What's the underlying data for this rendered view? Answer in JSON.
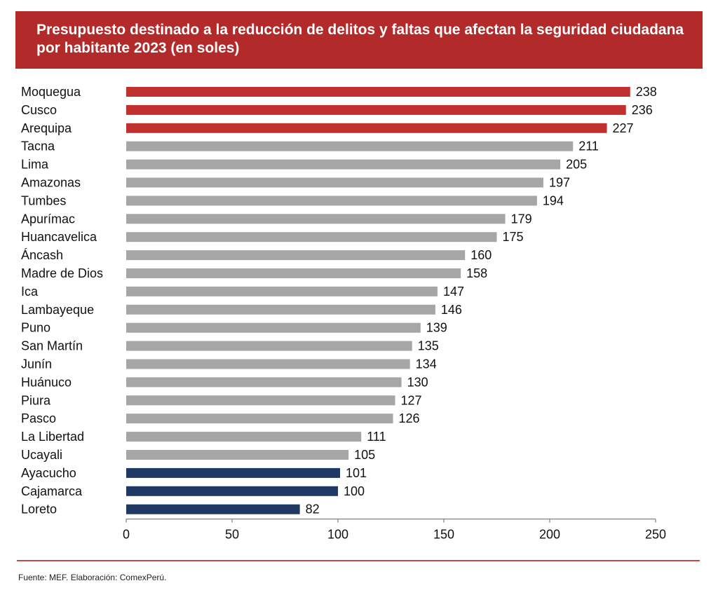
{
  "title": "Presupuesto destinado a la reducción de delitos y faltas que afectan la seguridad ciudadana por habitante 2023 (en soles)",
  "source": "Fuente: MEF. Elaboración: ComexPerú.",
  "colors": {
    "banner": "#b22a2a",
    "top": "#c0302e",
    "middle": "#a6a6a6",
    "bottom": "#1f3864",
    "rule": "#c9464a"
  },
  "chart_data": {
    "type": "bar",
    "orientation": "horizontal",
    "title": "Presupuesto destinado a la reducción de delitos y faltas que afectan la seguridad ciudadana por habitante 2023 (en soles)",
    "categories": [
      "Moquegua",
      "Cusco",
      "Arequipa",
      "Tacna",
      "Lima",
      "Amazonas",
      "Tumbes",
      "Apurímac",
      "Huancavelica",
      "Áncash",
      "Madre de Dios",
      "Ica",
      "Lambayeque",
      "Puno",
      "San Martín",
      "Junín",
      "Huánuco",
      "Piura",
      "Pasco",
      "La Libertad",
      "Ucayali",
      "Ayacucho",
      "Cajamarca",
      "Loreto"
    ],
    "values": [
      238,
      236,
      227,
      211,
      205,
      197,
      194,
      179,
      175,
      160,
      158,
      147,
      146,
      139,
      135,
      134,
      130,
      127,
      126,
      111,
      105,
      101,
      100,
      82
    ],
    "bar_groups": [
      "top",
      "top",
      "top",
      "middle",
      "middle",
      "middle",
      "middle",
      "middle",
      "middle",
      "middle",
      "middle",
      "middle",
      "middle",
      "middle",
      "middle",
      "middle",
      "middle",
      "middle",
      "middle",
      "middle",
      "middle",
      "bottom",
      "bottom",
      "bottom"
    ],
    "xlim": [
      0,
      250
    ],
    "xticks": [
      0,
      50,
      100,
      150,
      200,
      250
    ],
    "xlabel": "",
    "ylabel": "",
    "grid": false,
    "legend": "none"
  }
}
